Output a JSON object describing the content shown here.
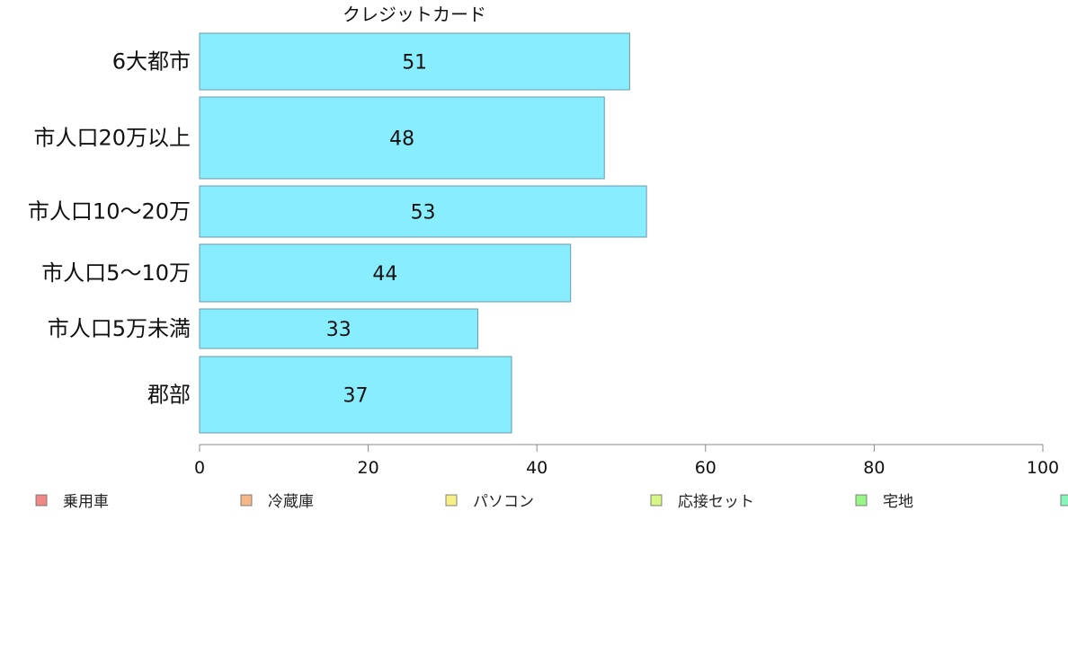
{
  "chart_data": {
    "type": "bar",
    "orientation": "horizontal",
    "title": "クレジットカード",
    "categories": [
      "6大都市",
      "市人口20万以上",
      "市人口10〜20万",
      "市人口5〜10万",
      "市人口5万未満",
      "郡部"
    ],
    "values": [
      51,
      48,
      53,
      44,
      33,
      37
    ],
    "data_labels": [
      "51",
      "48",
      "53",
      "44",
      "33",
      "37"
    ],
    "xlim": [
      0,
      100
    ],
    "x_ticks": [
      0,
      20,
      40,
      60,
      80,
      100
    ],
    "x_tick_labels": [
      "0",
      "20",
      "40",
      "60",
      "80",
      "100"
    ],
    "grid": false,
    "bar_color": "#88eeff",
    "legend_position": "bottom",
    "legend": [
      {
        "label": "乗用車",
        "color": "#f08888"
      },
      {
        "label": "冷蔵庫",
        "color": "#f5b888"
      },
      {
        "label": "パソコン",
        "color": "#f5f088"
      },
      {
        "label": "応接セット",
        "color": "#d8f588"
      },
      {
        "label": "宅地",
        "color": "#99f588"
      },
      {
        "label": "",
        "color": "#88f5bb"
      }
    ]
  }
}
